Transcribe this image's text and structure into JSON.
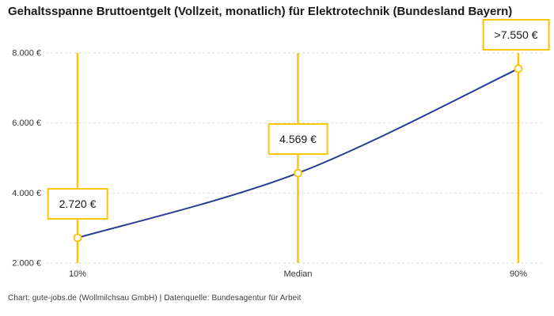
{
  "title": "Gehaltsspanne Bruttoentgelt (Vollzeit, monatlich) für Elektrotechnik (Bundesland Bayern)",
  "footer": "Chart: gute-jobs.de (Wollmilchsau GmbH) | Datenquelle: Bundesagentur für Arbeit",
  "colors": {
    "line": "#253e90",
    "accent": "#ffc400",
    "grid": "#d9d9d9",
    "title_text": "#1a1a1a",
    "tick_text": "#333333"
  },
  "chart_data": {
    "type": "line",
    "title": "Gehaltsspanne Bruttoentgelt (Vollzeit, monatlich) für Elektrotechnik (Bundesland Bayern)",
    "categories": [
      "10%",
      "Median",
      "90%"
    ],
    "values": [
      2720,
      4569,
      7550
    ],
    "point_labels": [
      "2.720 €",
      "4.569 €",
      ">7.550 €"
    ],
    "ylim": [
      2000,
      8000
    ],
    "yticks": [
      2000,
      4000,
      6000,
      8000
    ],
    "ytick_labels": [
      "2.000 €",
      "4.000 €",
      "6.000 €",
      "8.000 €"
    ],
    "grid": true,
    "legend": false,
    "marker_style": "open-circle",
    "vertical_markers": true
  }
}
